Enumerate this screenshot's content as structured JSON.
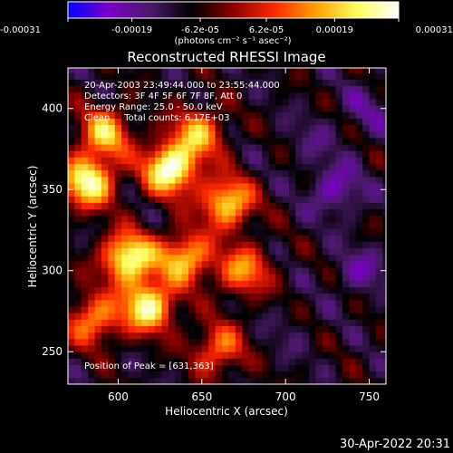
{
  "chart_data": {
    "type": "heatmap",
    "title": "Reconstructed RHESSI Image",
    "xlabel": "Heliocentric X (arcsec)",
    "ylabel": "Heliocentric Y (arcsec)",
    "xlim": [
      570,
      760
    ],
    "ylim": [
      230,
      425
    ],
    "xticks": [
      600,
      650,
      700,
      750
    ],
    "xtick_labels": [
      "600",
      "650",
      "700",
      "750"
    ],
    "yticks": [
      250,
      300,
      350,
      400
    ],
    "ytick_labels": [
      "250",
      "300",
      "350",
      "400"
    ],
    "colorbar": {
      "range": [
        -0.00031,
        0.00031
      ],
      "tick_values": [
        -0.00031,
        -0.00019,
        -6.2e-05,
        6.2e-05,
        0.00019,
        0.00031
      ],
      "tick_labels": [
        "-0.00031",
        "-0.00019",
        "-6.2e-05",
        "6.2e-05",
        "0.00019",
        "0.00031"
      ],
      "units_label": "(photons cm⁻² s⁻¹ asec⁻²)",
      "colors": [
        "#0000ff",
        "#7b00c8",
        "#4a1a6a",
        "#000000",
        "#8a0000",
        "#ff2a00",
        "#ffa000",
        "#ffff60",
        "#ffffff"
      ]
    },
    "annotations": {
      "time_range": "20-Apr-2003 23:49:44.000 to 23:55:44.000",
      "detectors": "Detectors: 3F 4F 5F 6F 7F 8F, Att 0",
      "energy_range": "Energy Range: 25.0 - 50.0 keV",
      "clean_counts": "Clean     Total counts: 6.17E+03",
      "peak": "Position of Peak = [631,363]"
    },
    "peak": {
      "x": 631,
      "y": 363
    },
    "hot_spots": [
      {
        "x": 631,
        "y": 363,
        "value": 0.00031
      },
      {
        "x": 582,
        "y": 355,
        "value": 0.00027
      },
      {
        "x": 606,
        "y": 308,
        "value": 0.00028
      },
      {
        "x": 618,
        "y": 278,
        "value": 0.00026
      },
      {
        "x": 665,
        "y": 342,
        "value": 0.00022
      },
      {
        "x": 640,
        "y": 308,
        "value": 0.0002
      },
      {
        "x": 592,
        "y": 385,
        "value": 0.00018
      },
      {
        "x": 648,
        "y": 385,
        "value": 0.00016
      },
      {
        "x": 675,
        "y": 300,
        "value": 0.00014
      },
      {
        "x": 660,
        "y": 252,
        "value": 0.00012
      },
      {
        "x": 585,
        "y": 270,
        "value": 0.00015
      }
    ],
    "cold_spots": [
      {
        "x": 730,
        "y": 350,
        "value": -0.00022
      },
      {
        "x": 745,
        "y": 300,
        "value": -0.00018
      },
      {
        "x": 715,
        "y": 380,
        "value": -0.00014
      },
      {
        "x": 700,
        "y": 260,
        "value": -0.00012
      },
      {
        "x": 750,
        "y": 400,
        "value": -0.00016
      }
    ]
  },
  "footer": {
    "timestamp": "30-Apr-2022 20:31"
  }
}
